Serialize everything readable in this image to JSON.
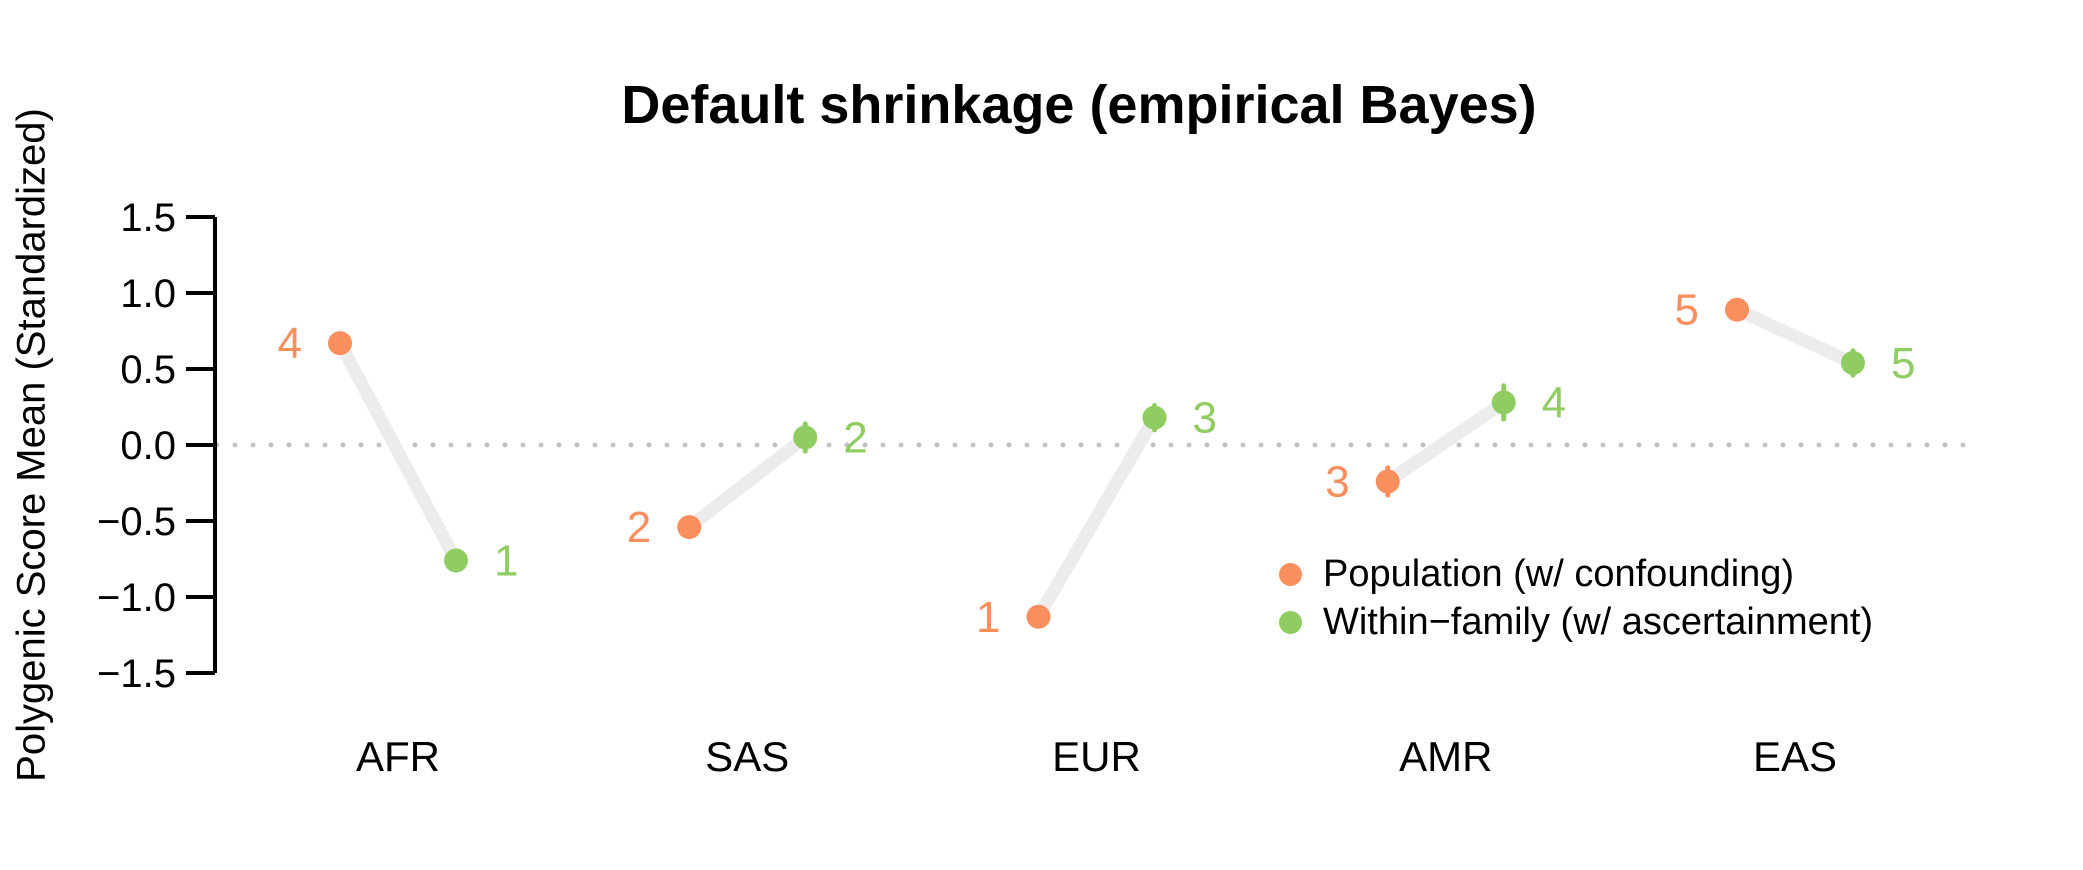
{
  "title": "Default shrinkage (empirical Bayes)",
  "ylabel": "Polygenic Score Mean (Standardized)",
  "colors": {
    "population": "#FA8E5D",
    "within_family": "#8FCD63",
    "connector": "#ECECEC",
    "zero_line": "#C2C2C2",
    "axis": "#000000",
    "text": "#000000"
  },
  "legend": {
    "items": [
      {
        "series": "population",
        "label": "Population (w/ confounding)"
      },
      {
        "series": "within_family",
        "label": "Within−family (w/ ascertainment)"
      }
    ]
  },
  "chart_data": {
    "type": "scatter",
    "subtype": "paired-dot-plot-with-error-bars",
    "title": "Default shrinkage (empirical Bayes)",
    "xlabel": "",
    "ylabel": "Polygenic Score Mean (Standardized)",
    "categories": [
      "AFR",
      "SAS",
      "EUR",
      "AMR",
      "EAS"
    ],
    "series": [
      {
        "name": "Population (w/ confounding)",
        "color_key": "population",
        "values": [
          0.67,
          -0.54,
          -1.13,
          -0.24,
          0.89
        ],
        "errors": [
          0.05,
          0.05,
          0.04,
          0.09,
          0.04
        ],
        "rank_labels": [
          "4",
          "2",
          "1",
          "3",
          "5"
        ],
        "label_side": "left"
      },
      {
        "name": "Within−family (w/ ascertainment)",
        "color_key": "within_family",
        "values": [
          -0.76,
          0.05,
          0.18,
          0.28,
          0.54
        ],
        "errors": [
          0.05,
          0.09,
          0.08,
          0.11,
          0.08
        ],
        "rank_labels": [
          "1",
          "2",
          "3",
          "4",
          "5"
        ],
        "label_side": "right"
      }
    ],
    "yticks": [
      1.5,
      1.0,
      0.5,
      0.0,
      -0.5,
      -1.0,
      -1.5
    ],
    "ytick_labels": [
      "1.5",
      "1.0",
      "0.5",
      "0.0",
      "−0.5",
      "−1.0",
      "−1.5"
    ],
    "ylim": [
      -1.5,
      1.5
    ],
    "zero_line": 0.0,
    "grid": false,
    "legend_position": "inside-bottom-right",
    "connectors": "paired points joined by light gray segments"
  }
}
